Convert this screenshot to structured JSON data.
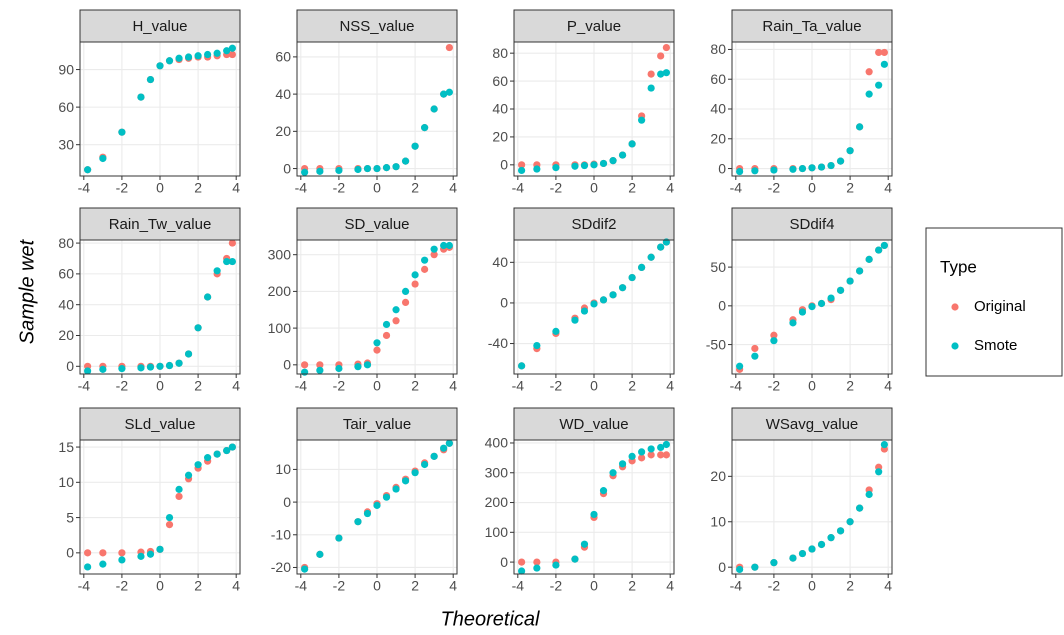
{
  "x_label": "Theoretical",
  "y_label": "Sample wet",
  "legend": {
    "title": "Type",
    "position": "right"
  },
  "chart_data": [
    {
      "type": "scatter",
      "title": "H_value",
      "x": [
        -3.8,
        -3,
        -2,
        -1,
        -0.5,
        0,
        0.5,
        1,
        1.5,
        2,
        2.5,
        3,
        3.5,
        3.8
      ],
      "xlim": [
        -4.2,
        4.2
      ],
      "xticks": [
        -4,
        -2,
        0,
        2,
        4
      ],
      "ylim": [
        5,
        112
      ],
      "yticks": [
        30,
        60,
        90
      ],
      "grid": true,
      "series": [
        {
          "name": "Original",
          "color": "#F8766D",
          "values": [
            10,
            20,
            40,
            68,
            82,
            93,
            97,
            98,
            99,
            100,
            100,
            101,
            102,
            102
          ]
        },
        {
          "name": "Smote",
          "color": "#00BFC4",
          "values": [
            10,
            19,
            40,
            68,
            82,
            93,
            97,
            99,
            100,
            101,
            102,
            103,
            105,
            107
          ]
        }
      ]
    },
    {
      "type": "scatter",
      "title": "NSS_value",
      "x": [
        -3.8,
        -3,
        -2,
        -1,
        -0.5,
        0,
        0.5,
        1,
        1.5,
        2,
        2.5,
        3,
        3.5,
        3.8
      ],
      "xlim": [
        -4.2,
        4.2
      ],
      "xticks": [
        -4,
        -2,
        0,
        2,
        4
      ],
      "ylim": [
        -4,
        68
      ],
      "yticks": [
        0,
        20,
        40,
        60
      ],
      "grid": true,
      "series": [
        {
          "name": "Original",
          "color": "#F8766D",
          "values": [
            0,
            0,
            0,
            0,
            0,
            0,
            0.5,
            1,
            4,
            12,
            22,
            32,
            40,
            65
          ]
        },
        {
          "name": "Smote",
          "color": "#00BFC4",
          "values": [
            -2,
            -1.5,
            -1,
            -0.5,
            0,
            0,
            0.5,
            1,
            4,
            12,
            22,
            32,
            40,
            41
          ]
        }
      ]
    },
    {
      "type": "scatter",
      "title": "P_value",
      "x": [
        -3.8,
        -3,
        -2,
        -1,
        -0.5,
        0,
        0.5,
        1,
        1.5,
        2,
        2.5,
        3,
        3.5,
        3.8
      ],
      "xlim": [
        -4.2,
        4.2
      ],
      "xticks": [
        -4,
        -2,
        0,
        2,
        4
      ],
      "ylim": [
        -8,
        88
      ],
      "yticks": [
        0,
        20,
        40,
        60,
        80
      ],
      "grid": true,
      "series": [
        {
          "name": "Original",
          "color": "#F8766D",
          "values": [
            0,
            0,
            0,
            0,
            0,
            0.5,
            1,
            3,
            7,
            15,
            35,
            65,
            78,
            84
          ]
        },
        {
          "name": "Smote",
          "color": "#00BFC4",
          "values": [
            -4,
            -3,
            -2,
            -1,
            -0.5,
            0,
            1,
            3,
            7,
            15,
            32,
            55,
            65,
            66
          ]
        }
      ]
    },
    {
      "type": "scatter",
      "title": "Rain_Ta_value",
      "x": [
        -3.8,
        -3,
        -2,
        -1,
        -0.5,
        0,
        0.5,
        1,
        1.5,
        2,
        2.5,
        3,
        3.5,
        3.8
      ],
      "xlim": [
        -4.2,
        4.2
      ],
      "xticks": [
        -4,
        -2,
        0,
        2,
        4
      ],
      "ylim": [
        -5,
        85
      ],
      "yticks": [
        0,
        20,
        40,
        60,
        80
      ],
      "grid": true,
      "series": [
        {
          "name": "Original",
          "color": "#F8766D",
          "values": [
            0,
            0,
            0,
            0,
            0,
            0.5,
            1,
            2,
            5,
            12,
            28,
            65,
            78,
            78
          ]
        },
        {
          "name": "Smote",
          "color": "#00BFC4",
          "values": [
            -2,
            -1.5,
            -1,
            -0.5,
            0,
            0.5,
            1,
            2,
            5,
            12,
            28,
            50,
            56,
            70
          ]
        }
      ]
    },
    {
      "type": "scatter",
      "title": "Rain_Tw_value",
      "x": [
        -3.8,
        -3,
        -2,
        -1,
        -0.5,
        0,
        0.5,
        1,
        1.5,
        2,
        2.5,
        3,
        3.5,
        3.8
      ],
      "xlim": [
        -4.2,
        4.2
      ],
      "xticks": [
        -4,
        -2,
        0,
        2,
        4
      ],
      "ylim": [
        -5,
        82
      ],
      "yticks": [
        0,
        20,
        40,
        60,
        80
      ],
      "grid": true,
      "series": [
        {
          "name": "Original",
          "color": "#F8766D",
          "values": [
            0,
            0,
            0,
            0,
            0,
            0,
            0.5,
            2,
            8,
            25,
            45,
            60,
            70,
            80
          ]
        },
        {
          "name": "Smote",
          "color": "#00BFC4",
          "values": [
            -3,
            -2,
            -1.5,
            -1,
            -0.5,
            0,
            0.5,
            2,
            8,
            25,
            45,
            62,
            68,
            68
          ]
        }
      ]
    },
    {
      "type": "scatter",
      "title": "SD_value",
      "x": [
        -3.8,
        -3,
        -2,
        -1,
        -0.5,
        0,
        0.5,
        1,
        1.5,
        2,
        2.5,
        3,
        3.5,
        3.8
      ],
      "xlim": [
        -4.2,
        4.2
      ],
      "xticks": [
        -4,
        -2,
        0,
        2,
        4
      ],
      "ylim": [
        -25,
        340
      ],
      "yticks": [
        0,
        100,
        200,
        300
      ],
      "grid": true,
      "series": [
        {
          "name": "Original",
          "color": "#F8766D",
          "values": [
            0,
            0,
            0,
            2,
            5,
            40,
            80,
            120,
            170,
            220,
            260,
            300,
            315,
            320
          ]
        },
        {
          "name": "Smote",
          "color": "#00BFC4",
          "values": [
            -20,
            -15,
            -10,
            -5,
            0,
            60,
            110,
            150,
            200,
            245,
            285,
            315,
            325,
            325
          ]
        }
      ]
    },
    {
      "type": "scatter",
      "title": "SDdif2",
      "x": [
        -3.8,
        -3,
        -2,
        -1,
        -0.5,
        0,
        0.5,
        1,
        1.5,
        2,
        2.5,
        3,
        3.5,
        3.8
      ],
      "xlim": [
        -4.2,
        4.2
      ],
      "xticks": [
        -4,
        -2,
        0,
        2,
        4
      ],
      "ylim": [
        -70,
        62
      ],
      "yticks": [
        -40,
        0,
        40
      ],
      "grid": true,
      "series": [
        {
          "name": "Original",
          "color": "#F8766D",
          "values": [
            -62,
            -45,
            -30,
            -15,
            -5,
            0,
            3,
            8,
            15,
            25,
            35,
            45,
            55,
            60
          ]
        },
        {
          "name": "Smote",
          "color": "#00BFC4",
          "values": [
            -62,
            -42,
            -28,
            -17,
            -8,
            -1,
            3,
            8,
            15,
            25,
            35,
            45,
            55,
            60
          ]
        }
      ]
    },
    {
      "type": "scatter",
      "title": "SDdif4",
      "x": [
        -3.8,
        -3,
        -2,
        -1,
        -0.5,
        0,
        0.5,
        1,
        1.5,
        2,
        2.5,
        3,
        3.5,
        3.8
      ],
      "xlim": [
        -4.2,
        4.2
      ],
      "xticks": [
        -4,
        -2,
        0,
        2,
        4
      ],
      "ylim": [
        -88,
        85
      ],
      "yticks": [
        -50,
        0,
        50
      ],
      "grid": true,
      "series": [
        {
          "name": "Original",
          "color": "#F8766D",
          "values": [
            -82,
            -55,
            -38,
            -18,
            -5,
            0,
            3,
            8,
            20,
            32,
            45,
            60,
            72,
            78
          ]
        },
        {
          "name": "Smote",
          "color": "#00BFC4",
          "values": [
            -78,
            -65,
            -45,
            -22,
            -8,
            -1,
            3,
            10,
            20,
            32,
            45,
            60,
            72,
            78
          ]
        }
      ]
    },
    {
      "type": "scatter",
      "title": "SLd_value",
      "x": [
        -3.8,
        -3,
        -2,
        -1,
        -0.5,
        0,
        0.5,
        1,
        1.5,
        2,
        2.5,
        3,
        3.5,
        3.8
      ],
      "xlim": [
        -4.2,
        4.2
      ],
      "xticks": [
        -4,
        -2,
        0,
        2,
        4
      ],
      "ylim": [
        -3,
        16
      ],
      "yticks": [
        0,
        5,
        10,
        15
      ],
      "grid": true,
      "series": [
        {
          "name": "Original",
          "color": "#F8766D",
          "values": [
            0,
            0,
            0,
            0.1,
            0.2,
            0.5,
            4,
            8,
            10.5,
            12,
            13,
            14,
            14.5,
            15
          ]
        },
        {
          "name": "Smote",
          "color": "#00BFC4",
          "values": [
            -2,
            -1.6,
            -1,
            -0.5,
            -0.2,
            0.5,
            5,
            9,
            11,
            12.5,
            13.5,
            14,
            14.5,
            15
          ]
        }
      ]
    },
    {
      "type": "scatter",
      "title": "Tair_value",
      "x": [
        -3.8,
        -3,
        -2,
        -1,
        -0.5,
        0,
        0.5,
        1,
        1.5,
        2,
        2.5,
        3,
        3.5,
        3.8
      ],
      "xlim": [
        -4.2,
        4.2
      ],
      "xticks": [
        -4,
        -2,
        0,
        2,
        4
      ],
      "ylim": [
        -22,
        19
      ],
      "yticks": [
        -20,
        -10,
        0,
        10
      ],
      "grid": true,
      "series": [
        {
          "name": "Original",
          "color": "#F8766D",
          "values": [
            -20,
            -16,
            -11,
            -6,
            -3,
            -0.5,
            2,
            4.5,
            7,
            9.5,
            12,
            14,
            16,
            18
          ]
        },
        {
          "name": "Smote",
          "color": "#00BFC4",
          "values": [
            -20.5,
            -16,
            -11,
            -6,
            -3.5,
            -1,
            1.5,
            4,
            6.5,
            9,
            11.5,
            14,
            16.5,
            18
          ]
        }
      ]
    },
    {
      "type": "scatter",
      "title": "WD_value",
      "x": [
        -3.8,
        -3,
        -2,
        -1,
        -0.5,
        0,
        0.5,
        1,
        1.5,
        2,
        2.5,
        3,
        3.5,
        3.8
      ],
      "xlim": [
        -4.2,
        4.2
      ],
      "xticks": [
        -4,
        -2,
        0,
        2,
        4
      ],
      "ylim": [
        -40,
        410
      ],
      "yticks": [
        0,
        100,
        200,
        300,
        400
      ],
      "grid": true,
      "series": [
        {
          "name": "Original",
          "color": "#F8766D",
          "values": [
            0,
            0,
            0,
            10,
            50,
            150,
            230,
            290,
            320,
            340,
            350,
            360,
            360,
            360
          ]
        },
        {
          "name": "Smote",
          "color": "#00BFC4",
          "values": [
            -30,
            -20,
            -10,
            10,
            60,
            160,
            240,
            300,
            330,
            355,
            370,
            380,
            385,
            395
          ]
        }
      ]
    },
    {
      "type": "scatter",
      "title": "WSavg_value",
      "x": [
        -3.8,
        -3,
        -2,
        -1,
        -0.5,
        0,
        0.5,
        1,
        1.5,
        2,
        2.5,
        3,
        3.5,
        3.8
      ],
      "xlim": [
        -4.2,
        4.2
      ],
      "xticks": [
        -4,
        -2,
        0,
        2,
        4
      ],
      "ylim": [
        -1.5,
        28
      ],
      "yticks": [
        0,
        10,
        20
      ],
      "grid": true,
      "series": [
        {
          "name": "Original",
          "color": "#F8766D",
          "values": [
            0,
            0,
            1,
            2,
            3,
            4,
            5,
            6.5,
            8,
            10,
            13,
            17,
            22,
            26
          ]
        },
        {
          "name": "Smote",
          "color": "#00BFC4",
          "values": [
            -0.5,
            0,
            1,
            2,
            3,
            4,
            5,
            6.5,
            8,
            10,
            13,
            16,
            21,
            27
          ]
        }
      ]
    }
  ]
}
